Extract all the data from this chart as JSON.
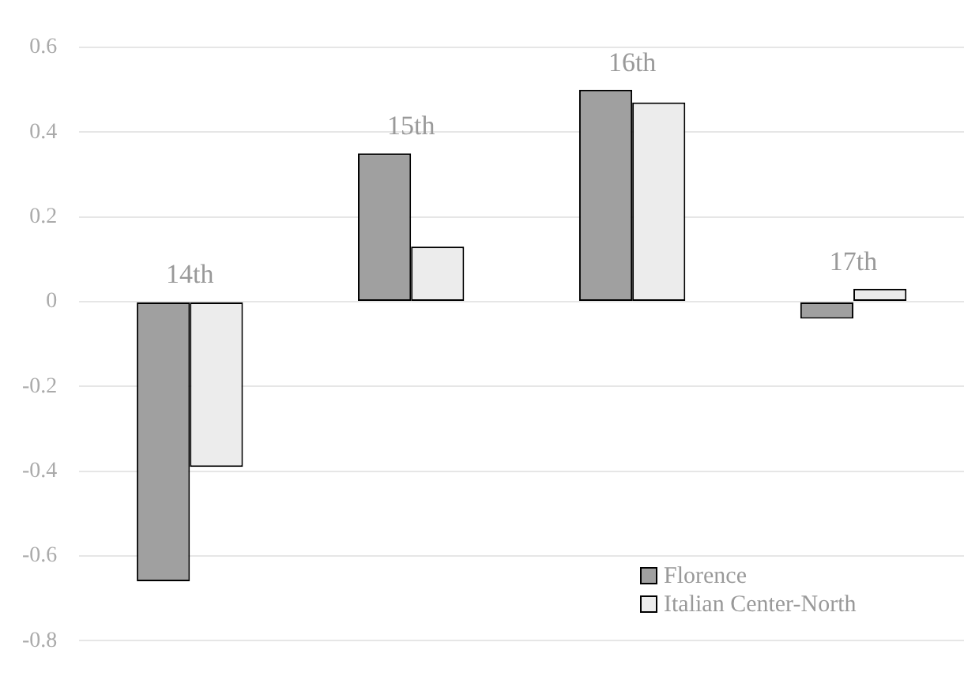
{
  "chart_data": {
    "type": "bar",
    "categories": [
      "14th",
      "15th",
      "16th",
      "17th"
    ],
    "series": [
      {
        "name": "Florence",
        "color": "#a0a0a0",
        "values": [
          -0.66,
          0.35,
          0.5,
          -0.04
        ]
      },
      {
        "name": "Italian Center-North",
        "color": "#ececec",
        "values": [
          -0.39,
          0.13,
          0.47,
          0.03
        ]
      }
    ],
    "ylim": [
      -0.8,
      0.6
    ],
    "yticks": [
      -0.8,
      -0.6,
      -0.4,
      -0.2,
      0,
      0.2,
      0.4,
      0.6
    ],
    "grid": "y",
    "legend": "bottom right"
  }
}
